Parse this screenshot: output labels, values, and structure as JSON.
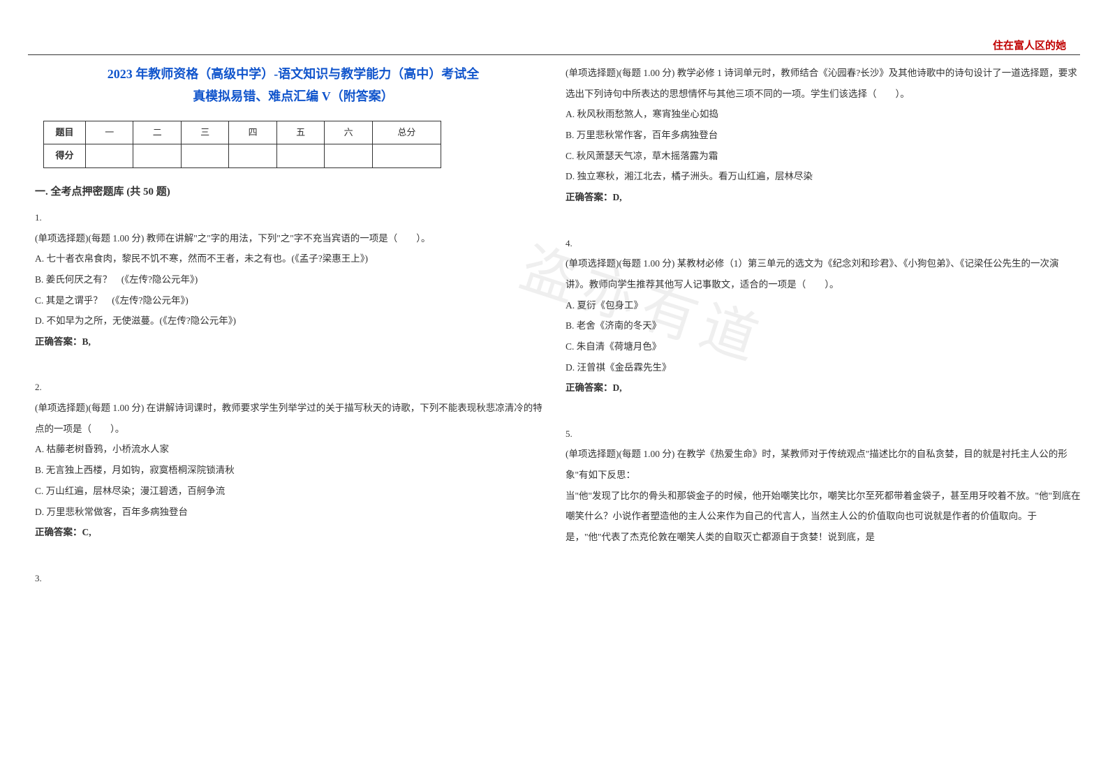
{
  "header": {
    "right_text": "住在富人区的她"
  },
  "title": {
    "line1": "2023 年教师资格（高级中学）-语文知识与教学能力（高中）考试全",
    "line2": "真模拟易错、难点汇编 V（附答案）"
  },
  "score_table": {
    "row1": [
      "题目",
      "一",
      "二",
      "三",
      "四",
      "五",
      "六",
      "总分"
    ],
    "row2_label": "得分"
  },
  "section_header": "一. 全考点押密题库 (共 50 题)",
  "q1": {
    "num": "1.",
    "text": "(单项选择题)(每题 1.00 分) 教师在讲解\"之\"字的用法，下列\"之\"字不充当宾语的一项是（　　）。",
    "optA": "A. 七十者衣帛食肉，黎民不饥不寒，然而不王者，未之有也。(《孟子?梁惠王上》)",
    "optB": "B. 姜氏何厌之有？　(《左传?隐公元年》)",
    "optC": "C. 其是之谓乎？　(《左传?隐公元年》)",
    "optD": "D. 不如早为之所，无使滋蔓。(《左传?隐公元年》)",
    "answer": "正确答案：B,"
  },
  "q2": {
    "num": "2.",
    "text": "(单项选择题)(每题 1.00 分) 在讲解诗词课时，教师要求学生列举学过的关于描写秋天的诗歌，下列不能表现秋悲凉清冷的特点的一项是（　　）。",
    "optA": "A. 枯藤老树昏鸦，小桥流水人家",
    "optB": "B. 无言独上西楼，月如钩，寂寞梧桐深院锁清秋",
    "optC": "C. 万山红遍，层林尽染；漫江碧透，百舸争流",
    "optD": "D. 万里悲秋常做客，百年多病独登台",
    "answer": "正确答案：C,"
  },
  "q3": {
    "num": "3.",
    "text": "(单项选择题)(每题 1.00 分) 教学必修 1 诗词单元时，教师结合《沁园春?长沙》及其他诗歌中的诗句设计了一道选择题，要求选出下列诗句中所表达的思想情怀与其他三项不同的一项。学生们该选择（　　）。",
    "optA": "A. 秋风秋雨愁煞人，寒宵独坐心如捣",
    "optB": "B. 万里悲秋常作客，百年多病独登台",
    "optC": "C. 秋风萧瑟天气凉，草木摇落露为霜",
    "optD": "D. 独立寒秋，湘江北去，橘子洲头。看万山红遍，层林尽染",
    "answer": "正确答案：D,"
  },
  "q4": {
    "num": "4.",
    "text": "(单项选择题)(每题 1.00 分) 某教材必修（1）第三单元的选文为《纪念刘和珍君》、《小狗包弟》、《记梁任公先生的一次演讲》。教师向学生推荐其他写人记事散文，适合的一项是（　　）。",
    "optA": "A. 夏衍《包身工》",
    "optB": "B. 老舍《济南的冬天》",
    "optC": "C. 朱自清《荷塘月色》",
    "optD": "D. 汪曾祺《金岳霖先生》",
    "answer": "正确答案：D,"
  },
  "q5": {
    "num": "5.",
    "text": "(单项选择题)(每题 1.00 分) 在教学《热爱生命》时，某教师对于传统观点\"描述比尔的自私贪婪，目的就是衬托主人公的形象\"有如下反思：",
    "para1": "当\"他\"发现了比尔的骨头和那袋金子的时候，他开始嘲笑比尔，嘲笑比尔至死都带着金袋子，甚至用牙咬着不放。\"他\"到底在嘲笑什么？小说作者塑造他的主人公来作为自己的代言人，当然主人公的价值取向也可说就是作者的价值取向。于是，\"他\"代表了杰克伦敦在嘲笑人类的自取灭亡都源自于贪婪！说到底，是"
  },
  "watermark": "盗亦有道"
}
